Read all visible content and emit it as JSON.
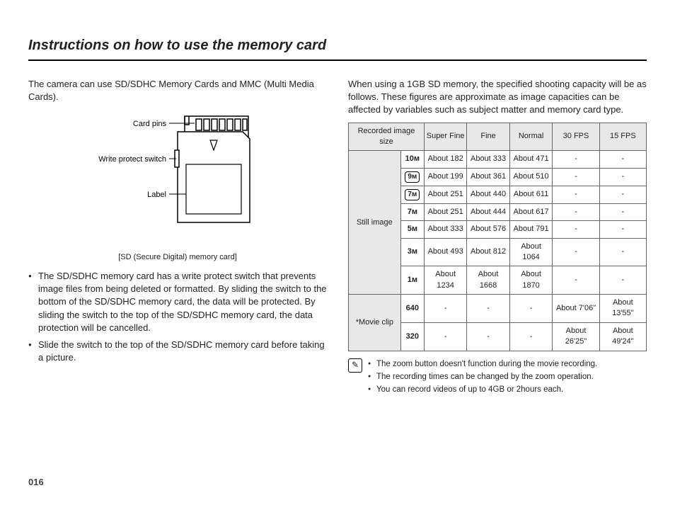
{
  "title": "Instructions on how to use the memory card",
  "intro_left": "The camera can use SD/SDHC Memory Cards and MMC (Multi Media Cards).",
  "diagram": {
    "label_pins": "Card pins",
    "label_switch": "Write protect switch",
    "label_label": "Label",
    "caption": "[SD (Secure Digital) memory card]"
  },
  "bullets_left": [
    "The SD/SDHC memory card has a write protect switch that prevents image files from being deleted or formatted. By sliding the switch to the bottom of the SD/SDHC memory card, the data will be protected. By sliding the switch to the top of the SD/SDHC memory card, the data protection will be cancelled.",
    "Slide the switch to the top of the SD/SDHC memory card before taking a picture."
  ],
  "intro_right": "When using a 1GB SD memory, the specified shooting capacity will be as follows. These figures are approximate as image capacities can be affected by variables such as subject matter and memory card type.",
  "table": {
    "header": [
      "Recorded image size",
      "Super Fine",
      "Fine",
      "Normal",
      "30 FPS",
      "15 FPS"
    ],
    "still_label": "Still image",
    "movie_label": "*Movie clip",
    "still_rows": [
      {
        "icon": "10ᴍ",
        "boxed": false,
        "sf": "About 182",
        "f": "About 333",
        "n": "About 471",
        "fps30": "-",
        "fps15": "-"
      },
      {
        "icon": "9ᴍ",
        "boxed": true,
        "sf": "About 199",
        "f": "About 361",
        "n": "About 510",
        "fps30": "-",
        "fps15": "-"
      },
      {
        "icon": "7ᴍ",
        "boxed": true,
        "sf": "About 251",
        "f": "About 440",
        "n": "About 611",
        "fps30": "-",
        "fps15": "-"
      },
      {
        "icon": "7ᴍ",
        "boxed": false,
        "sf": "About 251",
        "f": "About 444",
        "n": "About 617",
        "fps30": "-",
        "fps15": "-"
      },
      {
        "icon": "5ᴍ",
        "boxed": false,
        "sf": "About 333",
        "f": "About 576",
        "n": "About 791",
        "fps30": "-",
        "fps15": "-"
      },
      {
        "icon": "3ᴍ",
        "boxed": false,
        "sf": "About 493",
        "f": "About 812",
        "n": "About 1064",
        "fps30": "-",
        "fps15": "-"
      },
      {
        "icon": "1ᴍ",
        "boxed": false,
        "sf": "About 1234",
        "f": "About 1668",
        "n": "About 1870",
        "fps30": "-",
        "fps15": "-"
      }
    ],
    "movie_rows": [
      {
        "icon": "640",
        "sf": "-",
        "f": "-",
        "n": "-",
        "fps30": "About 7'06\"",
        "fps15": "About 13'55\""
      },
      {
        "icon": "320",
        "sf": "-",
        "f": "-",
        "n": "-",
        "fps30": "About 26'25\"",
        "fps15": "About 49'24\""
      }
    ]
  },
  "notes": [
    "The zoom button doesn't function during the movie recording.",
    "The recording times can be changed by the zoom operation.",
    "You can record videos of up to 4GB or 2hours each."
  ],
  "page_number": "016"
}
